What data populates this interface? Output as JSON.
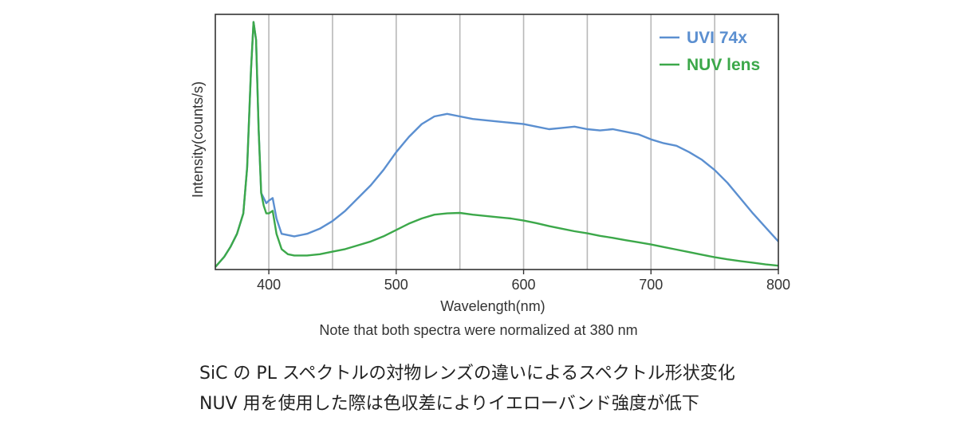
{
  "chart_data": {
    "type": "line",
    "xlabel": "Wavelength(nm)",
    "ylabel": "Intensity(counts/s)",
    "xlim": [
      358,
      800
    ],
    "ylim": [
      0,
      1.0
    ],
    "x_ticks": [
      400,
      500,
      600,
      700,
      800
    ],
    "vertical_grid_x": [
      400,
      450,
      500,
      550,
      600,
      650,
      700,
      750
    ],
    "grid": "vertical only",
    "y_tick_labels": "none",
    "legend_position": "top-right",
    "series": [
      {
        "name": "UVI 74x",
        "color": "#5b8fd0",
        "x": [
          358,
          365,
          370,
          375,
          380,
          383,
          386,
          388,
          390,
          392,
          394,
          396,
          398,
          400,
          403,
          406,
          410,
          415,
          420,
          430,
          440,
          450,
          460,
          470,
          480,
          490,
          500,
          510,
          520,
          530,
          540,
          550,
          560,
          570,
          580,
          590,
          600,
          610,
          620,
          630,
          640,
          650,
          660,
          670,
          680,
          690,
          700,
          710,
          720,
          730,
          740,
          750,
          760,
          770,
          780,
          790,
          800
        ],
        "y": [
          0.01,
          0.05,
          0.09,
          0.14,
          0.22,
          0.4,
          0.78,
          0.97,
          0.9,
          0.55,
          0.3,
          0.28,
          0.26,
          0.27,
          0.28,
          0.2,
          0.14,
          0.135,
          0.13,
          0.14,
          0.16,
          0.19,
          0.23,
          0.28,
          0.33,
          0.39,
          0.46,
          0.52,
          0.57,
          0.6,
          0.61,
          0.6,
          0.59,
          0.585,
          0.58,
          0.575,
          0.57,
          0.56,
          0.55,
          0.555,
          0.56,
          0.55,
          0.545,
          0.55,
          0.54,
          0.53,
          0.51,
          0.495,
          0.485,
          0.46,
          0.43,
          0.39,
          0.34,
          0.28,
          0.22,
          0.165,
          0.11
        ]
      },
      {
        "name": "NUV lens",
        "color": "#3ca84a",
        "x": [
          358,
          365,
          370,
          375,
          380,
          383,
          386,
          388,
          390,
          392,
          394,
          396,
          398,
          400,
          403,
          406,
          410,
          415,
          420,
          430,
          440,
          450,
          460,
          470,
          480,
          490,
          500,
          510,
          520,
          530,
          540,
          550,
          560,
          570,
          580,
          590,
          600,
          610,
          620,
          630,
          640,
          650,
          660,
          670,
          680,
          690,
          700,
          710,
          720,
          730,
          740,
          750,
          760,
          770,
          780,
          790,
          800
        ],
        "y": [
          0.01,
          0.05,
          0.09,
          0.14,
          0.22,
          0.4,
          0.78,
          0.97,
          0.9,
          0.55,
          0.3,
          0.25,
          0.22,
          0.22,
          0.23,
          0.14,
          0.08,
          0.06,
          0.055,
          0.055,
          0.06,
          0.07,
          0.08,
          0.095,
          0.11,
          0.13,
          0.155,
          0.18,
          0.2,
          0.215,
          0.22,
          0.222,
          0.215,
          0.21,
          0.205,
          0.2,
          0.192,
          0.182,
          0.17,
          0.16,
          0.15,
          0.142,
          0.132,
          0.124,
          0.115,
          0.107,
          0.098,
          0.088,
          0.078,
          0.068,
          0.058,
          0.048,
          0.04,
          0.033,
          0.027,
          0.02,
          0.015
        ]
      }
    ]
  },
  "note": "Note that both spectra were normalized at 380 nm",
  "caption_line1": "SiC の PL スペクトルの対物レンズの違いによるスペクトル形状変化",
  "caption_line2": "NUV 用を使用した際は色収差によりイエローバンド強度が低下"
}
